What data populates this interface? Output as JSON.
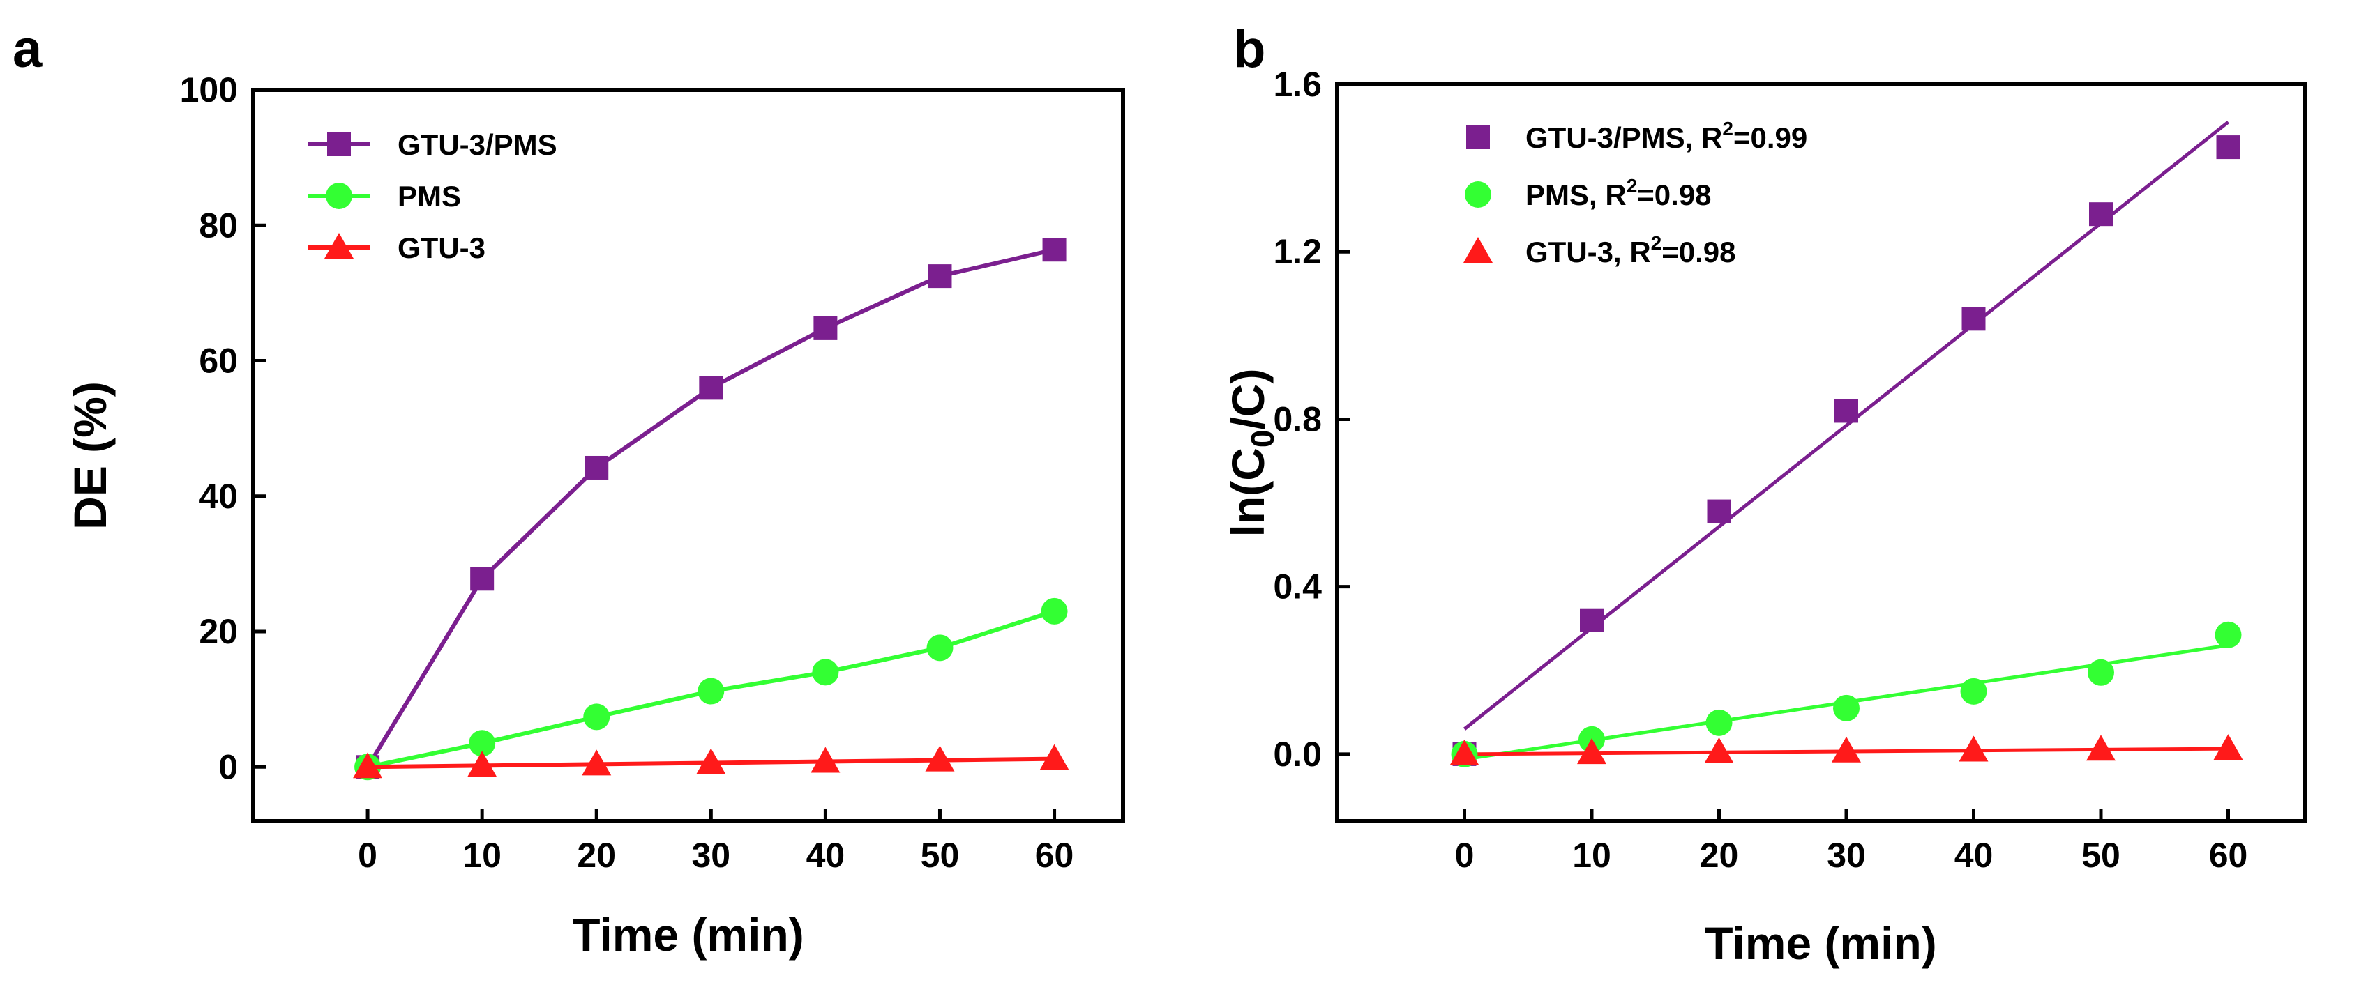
{
  "colors": {
    "gtu3_pms": "#7b1f8f",
    "pms": "#33ff33",
    "gtu3": "#ff1a1a",
    "axis": "#000000"
  },
  "chart_data": [
    {
      "panel": "a",
      "type": "line",
      "title": "",
      "xlabel": "Time (min)",
      "ylabel": "DE (%)",
      "xlim": [
        -10,
        66
      ],
      "ylim": [
        -8,
        100
      ],
      "xticks": [
        0,
        10,
        20,
        30,
        40,
        50,
        60
      ],
      "yticks": [
        0,
        20,
        40,
        60,
        80,
        100
      ],
      "x": [
        0,
        10,
        20,
        30,
        40,
        50,
        60
      ],
      "legend_position": "top-left",
      "series": [
        {
          "name": "GTU-3/PMS",
          "marker": "square",
          "color": "#7b1f8f",
          "values": [
            0,
            27.8,
            44.2,
            56.0,
            64.8,
            72.5,
            76.4
          ]
        },
        {
          "name": "PMS",
          "marker": "circle",
          "color": "#33ff33",
          "values": [
            0,
            3.5,
            7.4,
            11.2,
            14.0,
            17.6,
            23.0
          ]
        },
        {
          "name": "GTU-3",
          "marker": "triangle",
          "color": "#ff1a1a",
          "values": [
            0,
            0.2,
            0.4,
            0.6,
            0.8,
            1.0,
            1.2
          ]
        }
      ]
    },
    {
      "panel": "b",
      "type": "scatter",
      "title": "",
      "xlabel": "Time (min)",
      "ylabel_main": "ln(C",
      "ylabel_sub": "0",
      "ylabel_end": "/C)",
      "xlim": [
        -10,
        66
      ],
      "ylim": [
        -0.16,
        1.6
      ],
      "xticks": [
        0,
        10,
        20,
        30,
        40,
        50,
        60
      ],
      "yticks": [
        0.0,
        0.4,
        0.8,
        1.2,
        1.6
      ],
      "ytick_labels": [
        "0.0",
        "0.4",
        "0.8",
        "1.2",
        "1.6"
      ],
      "x": [
        0,
        10,
        20,
        30,
        40,
        50,
        60
      ],
      "legend_position": "top-left",
      "series": [
        {
          "name": "GTU-3/PMS, R",
          "sup": "2",
          "r2": "=0.99",
          "marker": "square",
          "color": "#7b1f8f",
          "values": [
            0,
            0.32,
            0.58,
            0.82,
            1.04,
            1.29,
            1.45
          ],
          "fit": [
            0.06,
            1.51
          ]
        },
        {
          "name": "PMS, R",
          "sup": "2",
          "r2": "=0.98",
          "marker": "circle",
          "color": "#33ff33",
          "values": [
            0,
            0.035,
            0.075,
            0.11,
            0.15,
            0.195,
            0.285
          ],
          "fit": [
            -0.012,
            0.26
          ]
        },
        {
          "name": "GTU-3, R",
          "sup": "2",
          "r2": "=0.98",
          "marker": "triangle",
          "color": "#ff1a1a",
          "values": [
            0,
            0.003,
            0.005,
            0.007,
            0.009,
            0.011,
            0.013
          ],
          "fit": [
            0.0,
            0.013
          ]
        }
      ]
    }
  ]
}
